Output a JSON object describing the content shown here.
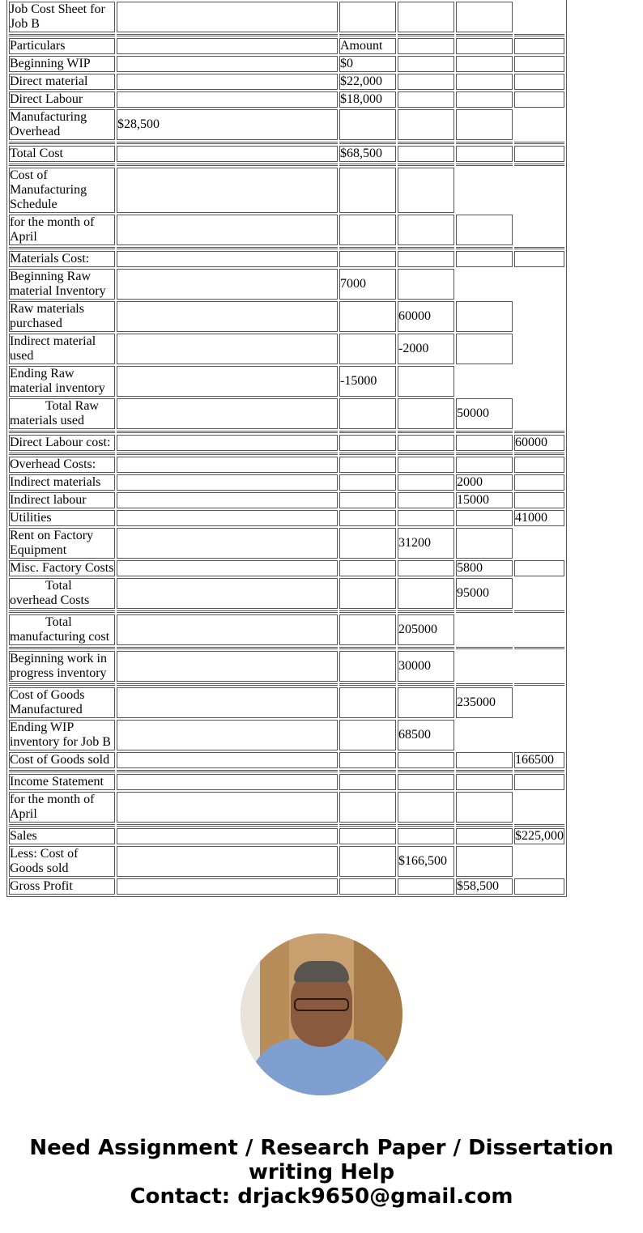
{
  "rows": [
    {
      "cells": [
        "Job Cost Sheet for Job B",
        "",
        "",
        "",
        "",
        null
      ]
    },
    {
      "sep": true,
      "cols": 6
    },
    {
      "cells": [
        "Particulars",
        "",
        "Amount",
        "",
        "",
        ""
      ]
    },
    {
      "cells": [
        "Beginning WIP",
        "",
        "$0",
        "",
        "",
        ""
      ]
    },
    {
      "cells": [
        "Direct material",
        "",
        "$22,000",
        "",
        "",
        ""
      ]
    },
    {
      "cells": [
        "Direct Labour",
        "",
        "$18,000",
        "",
        "",
        ""
      ]
    },
    {
      "cells": [
        "Manufacturing Overhead",
        "$28,500",
        "",
        "",
        "",
        null
      ]
    },
    {
      "sep": true,
      "cols": 6
    },
    {
      "cells": [
        "Total Cost",
        "",
        "$68,500",
        "",
        "",
        ""
      ]
    },
    {
      "sep": true,
      "cols": 6
    },
    {
      "cells": [
        "Cost of Manufacturing Schedule",
        "",
        "",
        "",
        null,
        null
      ]
    },
    {
      "cells": [
        "for the month of April",
        "",
        "",
        "",
        "",
        null
      ]
    },
    {
      "sep": true,
      "cols": 6
    },
    {
      "cells": [
        "Materials Cost:",
        "",
        "",
        "",
        "",
        ""
      ]
    },
    {
      "cells": [
        "Beginning Raw material Inventory",
        "",
        "7000",
        "",
        null,
        null
      ]
    },
    {
      "cells": [
        "Raw materials purchased",
        "",
        "",
        "60000",
        "",
        null
      ]
    },
    {
      "cells": [
        "Indirect material used",
        "",
        "",
        "-2000",
        "",
        null
      ]
    },
    {
      "cells": [
        "Ending Raw material inventory",
        "",
        "-15000",
        "",
        null,
        null
      ]
    },
    {
      "cells": [
        "Total Raw materials used",
        "",
        "",
        "",
        "50000",
        null
      ],
      "indent": true
    },
    {
      "sep": true,
      "cols": 6
    },
    {
      "cells": [
        "Direct Labour cost:",
        "",
        "",
        "",
        "",
        "60000"
      ]
    },
    {
      "sep": true,
      "cols": 6
    },
    {
      "cells": [
        "Overhead Costs:",
        "",
        "",
        "",
        "",
        ""
      ]
    },
    {
      "cells": [
        "Indirect materials",
        "",
        "",
        "",
        "2000",
        ""
      ]
    },
    {
      "cells": [
        "Indirect labour",
        "",
        "",
        "",
        "15000",
        ""
      ]
    },
    {
      "cells": [
        "Utilities",
        "",
        "",
        "",
        "",
        "41000"
      ]
    },
    {
      "cells": [
        "Rent on Factory Equipment",
        "",
        "",
        "31200",
        "",
        null
      ]
    },
    {
      "cells": [
        "Misc. Factory Costs",
        "",
        "",
        "",
        "5800",
        ""
      ]
    },
    {
      "cells": [
        "Total overhead Costs",
        "",
        "",
        "",
        "95000",
        null
      ],
      "indent": true
    },
    {
      "sep": true,
      "cols": 6
    },
    {
      "cells": [
        "Total manufacturing cost",
        "",
        "",
        "205000",
        null,
        null
      ],
      "indent": true
    },
    {
      "sep": true,
      "cols": 6
    },
    {
      "cells": [
        "Beginning work in progress inventory",
        "",
        "",
        "30000",
        null,
        null
      ]
    },
    {
      "sep": true,
      "cols": 6
    },
    {
      "cells": [
        "Cost of Goods Manufactured",
        "",
        "",
        "",
        "235000",
        null
      ]
    },
    {
      "cells": [
        "Ending WIP inventory for Job B",
        "",
        "",
        "68500",
        null,
        null
      ]
    },
    {
      "cells": [
        "Cost of Goods sold",
        "",
        "",
        "",
        "",
        "166500"
      ]
    },
    {
      "sep": true,
      "cols": 6
    },
    {
      "cells": [
        "Income Statement",
        "",
        "",
        "",
        "",
        ""
      ]
    },
    {
      "cells": [
        "for the month of April",
        "",
        "",
        "",
        "",
        null
      ]
    },
    {
      "sep": true,
      "cols": 6
    },
    {
      "cells": [
        "Sales",
        "",
        "",
        "",
        "",
        "$225,000"
      ]
    },
    {
      "cells": [
        "Less: Cost of Goods sold",
        "",
        "",
        "$166,500",
        "",
        null
      ]
    },
    {
      "cells": [
        "Gross Profit",
        "",
        "",
        "",
        "$58,500",
        ""
      ]
    }
  ],
  "footer": {
    "line1": "Need Assignment / Research Paper / Dissertation writing Help",
    "line2": "Contact: drjack9650@gmail.com"
  }
}
